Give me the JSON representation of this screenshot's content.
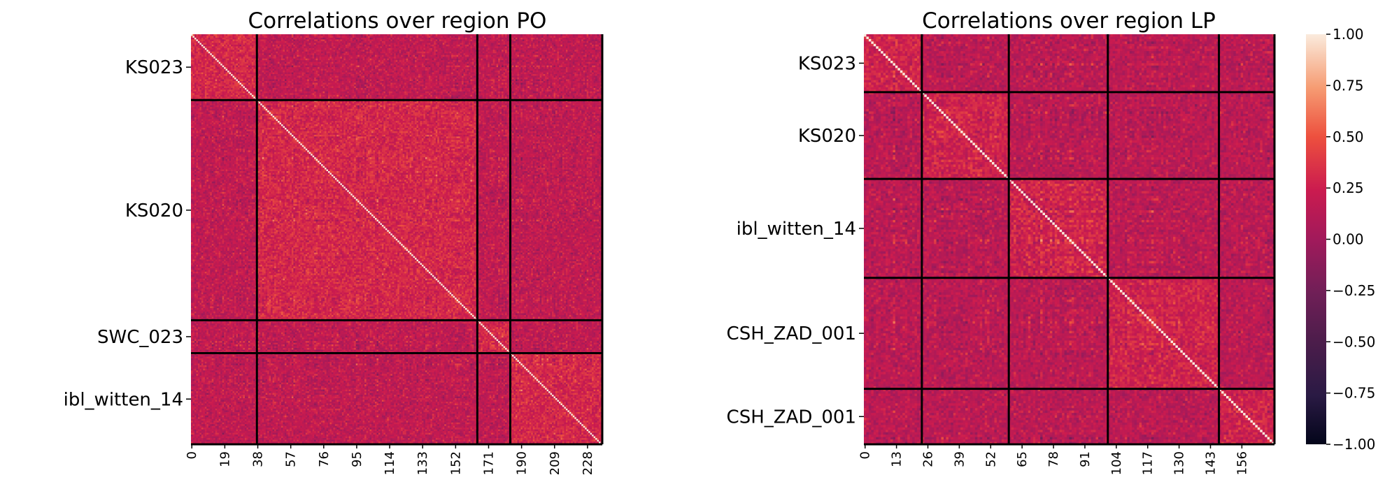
{
  "chart_data": [
    {
      "type": "heatmap",
      "title": "Correlations over region PO",
      "n": 237,
      "groups": [
        {
          "label": "KS023",
          "start": 0,
          "end": 38
        },
        {
          "label": "KS020",
          "start": 38,
          "end": 165
        },
        {
          "label": "SWC_023",
          "start": 165,
          "end": 184
        },
        {
          "label": "ibl_witten_14",
          "start": 184,
          "end": 237
        }
      ],
      "boundaries": [
        38,
        165,
        184
      ],
      "xticks": [
        "0",
        "19",
        "38",
        "57",
        "76",
        "95",
        "114",
        "133",
        "152",
        "171",
        "190",
        "209",
        "228"
      ],
      "xtick_values": [
        0,
        19,
        38,
        57,
        76,
        95,
        114,
        133,
        152,
        171,
        190,
        209,
        228
      ],
      "value_range": [
        -1,
        1
      ]
    },
    {
      "type": "heatmap",
      "title": "Correlations over region LP",
      "n": 170,
      "groups": [
        {
          "label": "KS023",
          "start": 0,
          "end": 24
        },
        {
          "label": "KS020",
          "start": 24,
          "end": 60
        },
        {
          "label": "ibl_witten_14",
          "start": 60,
          "end": 101
        },
        {
          "label": "CSH_ZAD_001",
          "start": 101,
          "end": 147
        },
        {
          "label": "CSH_ZAD_001",
          "start": 147,
          "end": 170
        }
      ],
      "boundaries": [
        24,
        60,
        101,
        147
      ],
      "xticks": [
        "0",
        "13",
        "26",
        "39",
        "52",
        "65",
        "78",
        "91",
        "104",
        "117",
        "130",
        "143",
        "156"
      ],
      "xtick_values": [
        0,
        13,
        26,
        39,
        52,
        65,
        78,
        91,
        104,
        117,
        130,
        143,
        156
      ],
      "value_range": [
        -1,
        1
      ]
    }
  ],
  "colorbar": {
    "ticks": [
      "1.00",
      "0.75",
      "0.50",
      "0.25",
      "0.00",
      "−0.25",
      "−0.50",
      "−0.75",
      "−1.00"
    ],
    "tick_values": [
      1.0,
      0.75,
      0.5,
      0.25,
      0.0,
      -0.25,
      -0.5,
      -0.75,
      -1.0
    ],
    "range": [
      -1,
      1
    ]
  }
}
